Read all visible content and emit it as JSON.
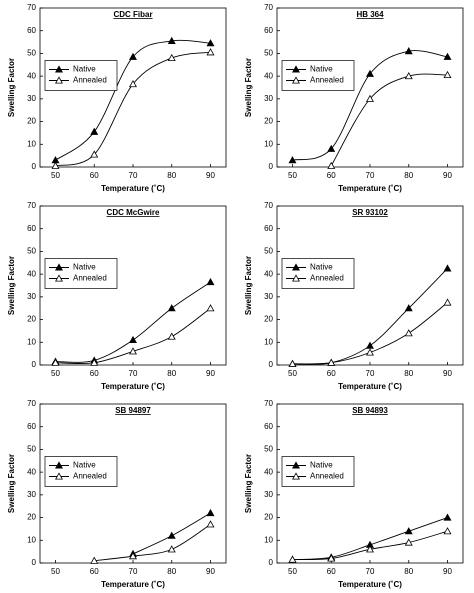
{
  "chart_data": [
    {
      "type": "line",
      "title": "CDC Fibar",
      "xlabel": "Temperature (˚C)",
      "ylabel": "Swelling Factor",
      "x": [
        50,
        60,
        70,
        80,
        90
      ],
      "xlim": [
        46,
        94
      ],
      "xticks": [
        50,
        60,
        70,
        80,
        90
      ],
      "ylim": [
        0,
        70
      ],
      "yticks": [
        0,
        10,
        20,
        30,
        40,
        50,
        60,
        70
      ],
      "legend": "center left",
      "series": [
        {
          "name": "Native",
          "color": "#000000",
          "filled": true,
          "values": [
            3,
            15.5,
            48.5,
            55.5,
            54.5
          ]
        },
        {
          "name": "Annealed",
          "color": "#000000",
          "filled": false,
          "values": [
            0.5,
            5.5,
            36.5,
            48,
            50.5
          ]
        }
      ]
    },
    {
      "type": "line",
      "title": "HB 364",
      "xlabel": "Temperature (˚C)",
      "ylabel": "Swelling Factor",
      "x": [
        50,
        60,
        70,
        80,
        90
      ],
      "xlim": [
        46,
        94
      ],
      "xticks": [
        50,
        60,
        70,
        80,
        90
      ],
      "ylim": [
        0,
        70
      ],
      "yticks": [
        0,
        10,
        20,
        30,
        40,
        50,
        60,
        70
      ],
      "legend": "center left",
      "series": [
        {
          "name": "Native",
          "color": "#000000",
          "filled": true,
          "values": [
            3,
            8,
            41,
            51,
            48.5
          ]
        },
        {
          "name": "Annealed",
          "color": "#000000",
          "filled": false,
          "values": [
            null,
            0.5,
            30,
            40,
            40.5
          ]
        }
      ]
    },
    {
      "type": "line",
      "title": "CDC McGwire",
      "xlabel": "Temperature (˚C)",
      "ylabel": "Swelling Factor",
      "x": [
        50,
        60,
        70,
        80,
        90
      ],
      "xlim": [
        46,
        94
      ],
      "xticks": [
        50,
        60,
        70,
        80,
        90
      ],
      "ylim": [
        0,
        70
      ],
      "yticks": [
        0,
        10,
        20,
        30,
        40,
        50,
        60,
        70
      ],
      "legend": "center left",
      "series": [
        {
          "name": "Native",
          "color": "#000000",
          "filled": true,
          "values": [
            1.5,
            2,
            11,
            25,
            36.5
          ]
        },
        {
          "name": "Annealed",
          "color": "#000000",
          "filled": false,
          "values": [
            1,
            1,
            6,
            12.5,
            25
          ]
        }
      ]
    },
    {
      "type": "line",
      "title": "SR 93102",
      "xlabel": "Temperature (˚C)",
      "ylabel": "Swelling Factor",
      "x": [
        50,
        60,
        70,
        80,
        90
      ],
      "xlim": [
        46,
        94
      ],
      "xticks": [
        50,
        60,
        70,
        80,
        90
      ],
      "ylim": [
        0,
        70
      ],
      "yticks": [
        0,
        10,
        20,
        30,
        40,
        50,
        60,
        70
      ],
      "legend": "center left",
      "series": [
        {
          "name": "Native",
          "color": "#000000",
          "filled": true,
          "values": [
            0.5,
            1,
            8.5,
            25,
            42.5
          ]
        },
        {
          "name": "Annealed",
          "color": "#000000",
          "filled": false,
          "values": [
            0.5,
            1,
            5.5,
            14,
            27.5
          ]
        }
      ]
    },
    {
      "type": "line",
      "title": "SB 94897",
      "xlabel": "Temperature (˚C)",
      "ylabel": "Swelling Factor",
      "x": [
        50,
        60,
        70,
        80,
        90
      ],
      "xlim": [
        46,
        94
      ],
      "xticks": [
        50,
        60,
        70,
        80,
        90
      ],
      "ylim": [
        0,
        70
      ],
      "yticks": [
        0,
        10,
        20,
        30,
        40,
        50,
        60,
        70
      ],
      "legend": "center left",
      "series": [
        {
          "name": "Native",
          "color": "#000000",
          "filled": true,
          "values": [
            null,
            null,
            4,
            12,
            22
          ]
        },
        {
          "name": "Annealed",
          "color": "#000000",
          "filled": false,
          "values": [
            null,
            1,
            3,
            6,
            17
          ]
        }
      ]
    },
    {
      "type": "line",
      "title": "SB 94893",
      "xlabel": "Temperature (˚C)",
      "ylabel": "Swelling Factor",
      "x": [
        50,
        60,
        70,
        80,
        90
      ],
      "xlim": [
        46,
        94
      ],
      "xticks": [
        50,
        60,
        70,
        80,
        90
      ],
      "ylim": [
        0,
        70
      ],
      "yticks": [
        0,
        10,
        20,
        30,
        40,
        50,
        60,
        70
      ],
      "legend": "center left",
      "series": [
        {
          "name": "Native",
          "color": "#000000",
          "filled": true,
          "values": [
            1.5,
            2.5,
            8,
            14,
            20
          ]
        },
        {
          "name": "Annealed",
          "color": "#000000",
          "filled": false,
          "values": [
            1.5,
            2,
            6,
            9,
            14
          ]
        }
      ]
    }
  ]
}
